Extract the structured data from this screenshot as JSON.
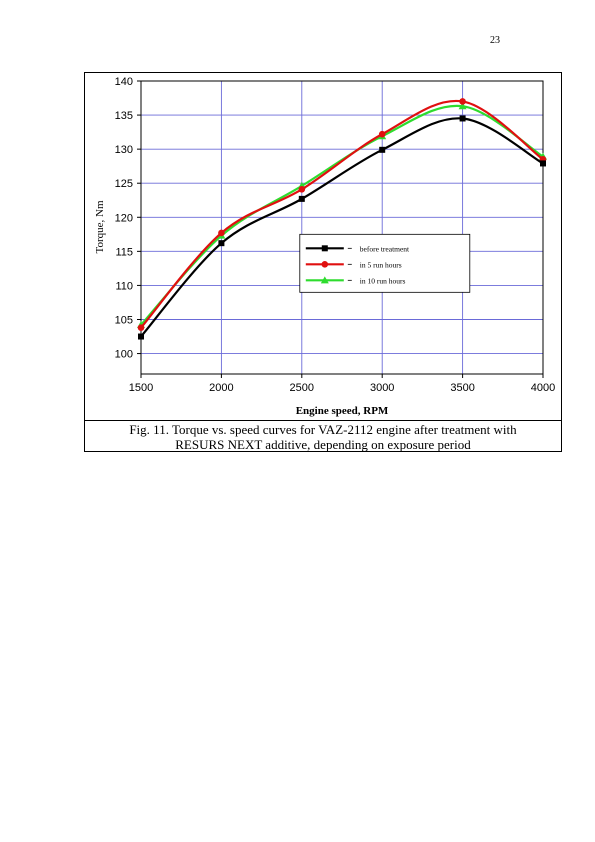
{
  "page": {
    "number": "23"
  },
  "caption": {
    "line1": "Fig. 11. Torque vs. speed curves for VAZ-2112 engine after treatment with",
    "line2": "RESURS NEXT additive, depending on exposure period"
  },
  "chart_data": {
    "type": "line",
    "title": "",
    "xlabel": "Engine speed, RPM",
    "ylabel": "Torque, Nm",
    "x": [
      1500,
      2000,
      2500,
      3000,
      3500,
      4000
    ],
    "xlim": [
      1500,
      4000
    ],
    "ylim": [
      97,
      140
    ],
    "xticks": [
      1500,
      2000,
      2500,
      3000,
      3500,
      4000
    ],
    "yticks": [
      100,
      105,
      110,
      115,
      120,
      125,
      130,
      135,
      140
    ],
    "grid": true,
    "legend_position": "center-right",
    "series": [
      {
        "name": "before treatment",
        "color": "#000000",
        "marker": "square",
        "values": [
          102.5,
          116.2,
          122.7,
          129.9,
          134.5,
          127.9
        ]
      },
      {
        "name": "in 5 run hours",
        "color": "#e01010",
        "marker": "circle",
        "values": [
          103.8,
          117.7,
          124.1,
          132.2,
          137.0,
          128.5
        ]
      },
      {
        "name": "in 10 run hours",
        "color": "#2edc2e",
        "marker": "triangle",
        "values": [
          104.2,
          117.3,
          124.6,
          131.9,
          136.3,
          128.9
        ]
      }
    ]
  }
}
